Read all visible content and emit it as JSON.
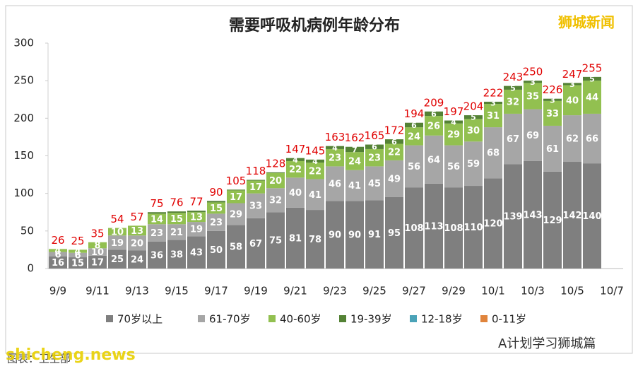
{
  "chart_data": {
    "type": "stacked-bar",
    "title": "需要呼吸机病例年龄分布",
    "categories": [
      "9/9",
      null,
      "9/11",
      null,
      "9/13",
      null,
      "9/15",
      null,
      "9/17",
      null,
      "9/19",
      null,
      "9/21",
      null,
      "9/23",
      null,
      "9/25",
      null,
      "9/27",
      null,
      "9/29",
      null,
      "10/1",
      null,
      "10/3",
      null,
      "10/5",
      null,
      "10/7"
    ],
    "series": [
      {
        "name": "70岁以上",
        "color": "#7f7f7f",
        "values": [
          16,
          15,
          17,
          25,
          24,
          36,
          38,
          43,
          50,
          58,
          67,
          75,
          81,
          78,
          90,
          90,
          91,
          95,
          108,
          113,
          108,
          110,
          120,
          139,
          143,
          129,
          142,
          140,
          null
        ]
      },
      {
        "name": "61-70岁",
        "color": "#a6a6a6",
        "values": [
          6,
          6,
          10,
          19,
          20,
          23,
          21,
          19,
          23,
          29,
          33,
          32,
          40,
          41,
          46,
          41,
          45,
          49,
          56,
          64,
          56,
          59,
          68,
          67,
          69,
          61,
          62,
          66,
          null
        ]
      },
      {
        "name": "40-60岁",
        "color": "#92c050",
        "values": [
          4,
          4,
          8,
          10,
          13,
          14,
          15,
          13,
          15,
          17,
          17,
          20,
          22,
          22,
          23,
          24,
          23,
          22,
          24,
          26,
          29,
          30,
          31,
          32,
          35,
          33,
          40,
          44,
          null
        ]
      },
      {
        "name": "19-39岁",
        "color": "#548235",
        "values": [
          0,
          0,
          0,
          0,
          0,
          2,
          2,
          2,
          2,
          1,
          1,
          1,
          4,
          4,
          4,
          7,
          6,
          6,
          6,
          6,
          4,
          5,
          3,
          5,
          3,
          3,
          3,
          5,
          null
        ]
      },
      {
        "name": "12-18岁",
        "color": "#4ba3b8",
        "values": [
          0,
          0,
          0,
          0,
          0,
          0,
          0,
          0,
          0,
          0,
          0,
          0,
          0,
          0,
          0,
          0,
          0,
          0,
          0,
          0,
          0,
          0,
          0,
          0,
          0,
          0,
          0,
          0,
          null
        ]
      },
      {
        "name": "0-11岁",
        "color": "#e0843c",
        "values": [
          0,
          0,
          0,
          0,
          0,
          0,
          0,
          0,
          0,
          0,
          0,
          0,
          0,
          0,
          0,
          0,
          0,
          0,
          0,
          0,
          0,
          0,
          0,
          0,
          0,
          0,
          0,
          0,
          null
        ]
      }
    ],
    "totals": [
      26,
      25,
      35,
      54,
      57,
      75,
      76,
      77,
      90,
      105,
      118,
      128,
      147,
      145,
      163,
      162,
      165,
      172,
      194,
      209,
      197,
      204,
      222,
      243,
      250,
      226,
      247,
      255,
      null
    ],
    "ylim": [
      0,
      300
    ],
    "yticks": [
      0,
      50,
      100,
      150,
      200,
      250,
      300
    ],
    "grid": false,
    "legend": "bottom"
  },
  "watermarks": {
    "brand": "狮城新闻",
    "site": "shicheng.news",
    "source": "图表：卫生部",
    "account": "A计划学习狮城篇"
  }
}
